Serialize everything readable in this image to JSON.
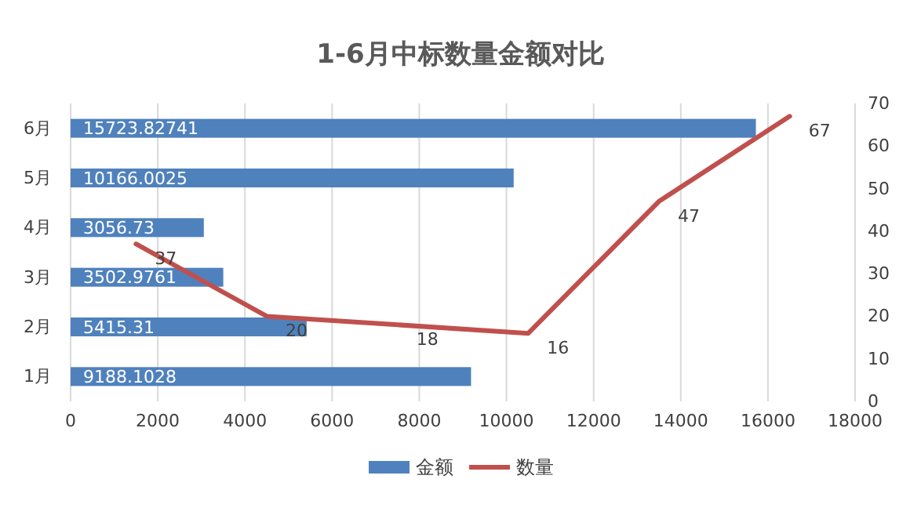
{
  "chart_data": [
    {
      "type": "bar",
      "title": "1-6月中标数量金额对比",
      "orientation": "horizontal",
      "categories": [
        "6月",
        "5月",
        "4月",
        "3月",
        "2月",
        "1月"
      ],
      "series": [
        {
          "name": "金额",
          "color": "#4f81bd",
          "values": [
            15723.82741,
            10166.0025,
            3056.73,
            3502.9761,
            5415.31,
            9188.1028
          ]
        }
      ],
      "xlim": [
        0,
        18000
      ],
      "xticks": [
        0,
        2000,
        4000,
        6000,
        8000,
        10000,
        12000,
        14000,
        16000,
        18000
      ],
      "grid": "x",
      "legend": "bottom",
      "data_labels": true
    },
    {
      "type": "line",
      "categories": [
        null,
        null,
        null,
        null,
        null,
        null
      ],
      "series": [
        {
          "name": "数量",
          "color": "#c0504d",
          "values": [
            37,
            20,
            18,
            16,
            47,
            67
          ]
        }
      ],
      "ylim": [
        0,
        70
      ],
      "yticks": [
        0,
        10,
        20,
        30,
        40,
        50,
        60,
        70
      ],
      "tick_labels": "y",
      "legend": "bottom",
      "data_labels": true,
      "line_style": "solid"
    }
  ]
}
